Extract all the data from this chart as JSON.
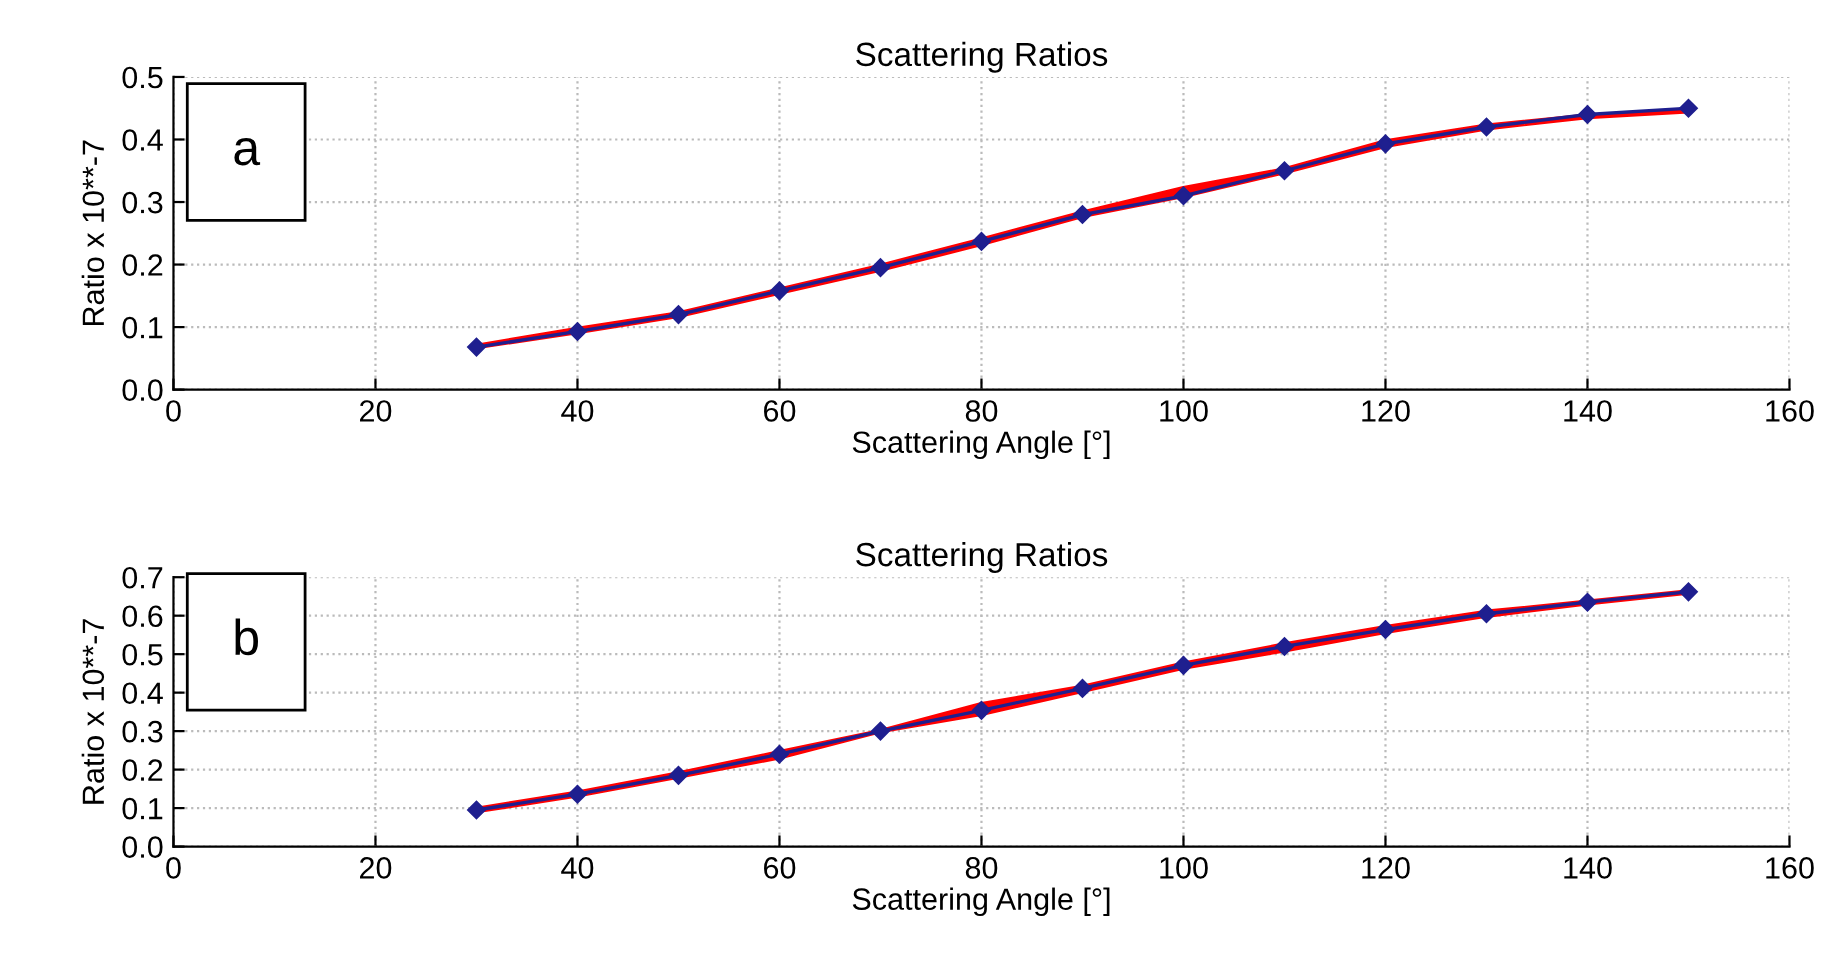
{
  "chart_data": [
    {
      "type": "line",
      "title": "Scattering Ratios",
      "xlabel": "Scattering Angle [°]",
      "ylabel": "Ratio x 10**-7",
      "annotations": [
        "a"
      ],
      "grid": true,
      "x": [
        30,
        40,
        50,
        60,
        70,
        80,
        90,
        100,
        110,
        120,
        130,
        140,
        150
      ],
      "series": [
        {
          "color": "#ff0000",
          "values": [
            null,
            null,
            null,
            null,
            null,
            null,
            null,
            null,
            null,
            null,
            null,
            null,
            null
          ],
          "upper": [
            0.07,
            0.097,
            0.122,
            0.16,
            0.198,
            0.24,
            0.283,
            0.322,
            0.352,
            0.397,
            0.422,
            0.438,
            0.447
          ],
          "lower": [
            0.068,
            0.092,
            0.118,
            0.155,
            0.192,
            0.233,
            0.278,
            0.31,
            0.348,
            0.39,
            0.418,
            0.436,
            0.445
          ]
        },
        {
          "color": "#1f1f8f",
          "marker": "diamond",
          "values": [
            0.068,
            0.093,
            0.12,
            0.158,
            0.195,
            0.237,
            0.28,
            0.31,
            0.35,
            0.393,
            0.42,
            0.44,
            0.45
          ]
        }
      ],
      "xlim": [
        0,
        160
      ],
      "xticks": [
        0,
        20,
        40,
        60,
        80,
        100,
        120,
        140,
        160
      ],
      "ylim": [
        0,
        0.5
      ],
      "yticks": [
        {
          "value": 0,
          "label": "0.0"
        },
        {
          "value": 0.1,
          "label": "0.1"
        },
        {
          "value": 0.2,
          "label": "0.2"
        },
        {
          "value": 0.3,
          "label": "0.3"
        },
        {
          "value": 0.4,
          "label": "0.4"
        },
        {
          "value": 0.5,
          "label": "0.5"
        }
      ]
    },
    {
      "type": "line",
      "title": "Scattering Ratios",
      "xlabel": "Scattering Angle [°]",
      "ylabel": "Ratio x 10**-7",
      "annotations": [
        "b"
      ],
      "grid": true,
      "x": [
        30,
        40,
        50,
        60,
        70,
        80,
        90,
        100,
        110,
        120,
        130,
        140,
        150
      ],
      "series": [
        {
          "color": "#ff0000",
          "values": [
            null,
            null,
            null,
            null,
            null,
            null,
            null,
            null,
            null,
            null,
            null,
            null,
            null
          ],
          "upper": [
            0.098,
            0.14,
            0.19,
            0.245,
            0.3,
            0.37,
            0.415,
            0.475,
            0.525,
            0.57,
            0.61,
            0.636,
            0.663
          ],
          "lower": [
            0.092,
            0.133,
            0.182,
            0.232,
            0.3,
            0.345,
            0.405,
            0.465,
            0.51,
            0.558,
            0.6,
            0.632,
            0.66
          ]
        },
        {
          "color": "#1f1f8f",
          "marker": "diamond",
          "values": [
            0.095,
            0.136,
            0.185,
            0.24,
            0.3,
            0.354,
            0.411,
            0.471,
            0.52,
            0.564,
            0.605,
            0.635,
            0.662
          ]
        }
      ],
      "xlim": [
        0,
        160
      ],
      "xticks": [
        0,
        20,
        40,
        60,
        80,
        100,
        120,
        140,
        160
      ],
      "ylim": [
        0,
        0.7
      ],
      "yticks": [
        {
          "value": 0,
          "label": "0.0"
        },
        {
          "value": 0.1,
          "label": "0.1"
        },
        {
          "value": 0.2,
          "label": "0.2"
        },
        {
          "value": 0.3,
          "label": "0.3"
        },
        {
          "value": 0.4,
          "label": "0.4"
        },
        {
          "value": 0.5,
          "label": "0.5"
        },
        {
          "value": 0.6,
          "label": "0.6"
        },
        {
          "value": 0.7,
          "label": "0.7"
        }
      ]
    }
  ]
}
